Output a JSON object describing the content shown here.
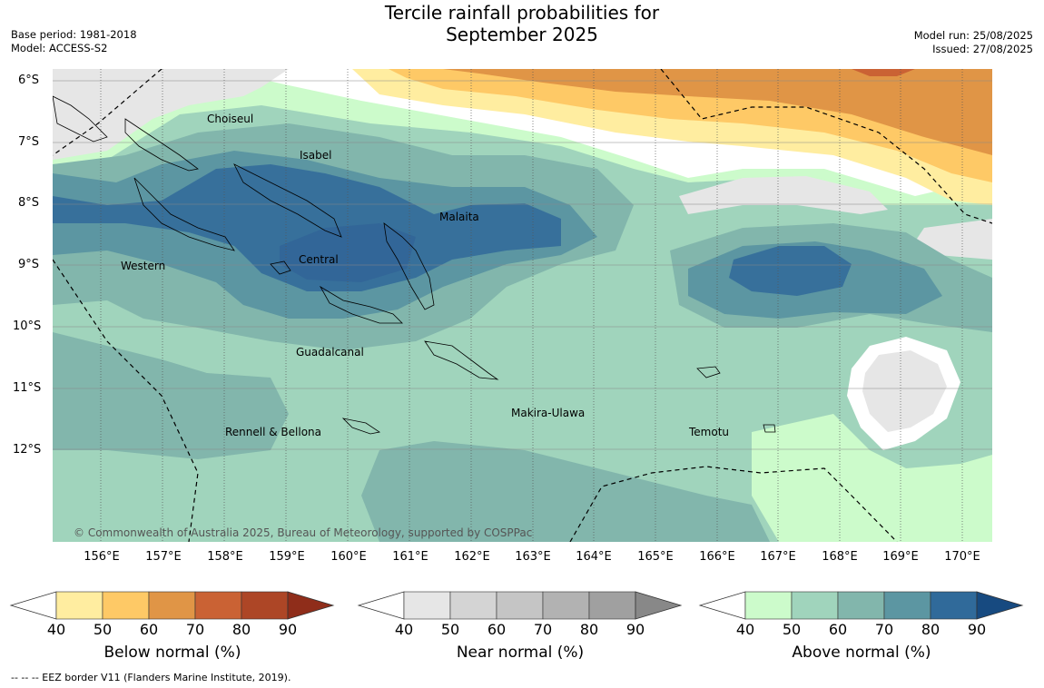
{
  "title": {
    "line1": "Tercile rainfall probabilities for",
    "line2": "September 2025"
  },
  "meta_left": {
    "base_period": "Base period: 1981-2018",
    "model": "Model: ACCESS-S2"
  },
  "meta_right": {
    "model_run": "Model run: 25/08/2025",
    "issued": "Issued: 27/08/2025"
  },
  "latitude_labels": [
    "6°S",
    "7°S",
    "8°S",
    "9°S",
    "10°S",
    "11°S",
    "12°S"
  ],
  "longitude_labels": [
    "156°E",
    "157°E",
    "158°E",
    "159°E",
    "160°E",
    "161°E",
    "162°E",
    "163°E",
    "164°E",
    "165°E",
    "166°E",
    "167°E",
    "168°E",
    "169°E",
    "170°E"
  ],
  "regions": {
    "choiseul": "Choiseul",
    "isabel": "Isabel",
    "malaita": "Malaita",
    "western": "Western",
    "central": "Central",
    "guadalcanal": "Guadalcanal",
    "makira_ulawa": "Makira-Ulawa",
    "temotu": "Temotu",
    "rennell_bellona": "Rennell & Bellona"
  },
  "copyright": "© Commonwealth of Australia 2025, Bureau of Meteorology, supported by COSPPac",
  "colorbars": [
    {
      "title": "Below normal (%)",
      "ticks": [
        "40",
        "50",
        "60",
        "70",
        "80",
        "90"
      ],
      "colors": [
        "#ffeda0",
        "#fec966",
        "#e09546",
        "#ca6234",
        "#ad4626",
        "#8f2d1a"
      ]
    },
    {
      "title": "Near normal (%)",
      "ticks": [
        "40",
        "50",
        "60",
        "70",
        "80",
        "90"
      ],
      "colors": [
        "#e6e6e6",
        "#d4d4d4",
        "#c5c5c5",
        "#b2b2b2",
        "#a0a0a0",
        "#888888"
      ]
    },
    {
      "title": "Above normal (%)",
      "ticks": [
        "40",
        "50",
        "60",
        "70",
        "80",
        "90"
      ],
      "colors": [
        "#ccfbcb",
        "#a0d4bc",
        "#82b6ac",
        "#5c96a2",
        "#306a9a",
        "#174a80"
      ]
    }
  ],
  "footnote": "--  --  -- EEZ border V11 (Flanders Marine Institute, 2019)."
}
